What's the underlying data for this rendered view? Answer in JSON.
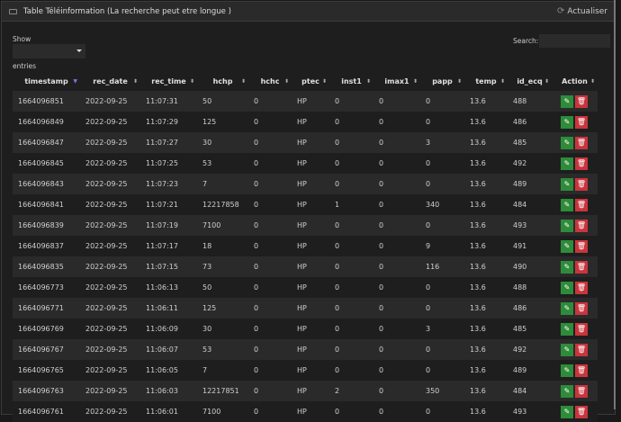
{
  "header": {
    "title": "Table Téléinformation (La recherche peut etre longue )",
    "refresh_label": "Actualiser"
  },
  "controls": {
    "show_label": "Show",
    "entries_label": "entries",
    "search_label": "Search:",
    "search_value": ""
  },
  "columns": [
    "timestamp",
    "rec_date",
    "rec_time",
    "hchp",
    "hchc",
    "ptec",
    "inst1",
    "imax1",
    "papp",
    "temp",
    "id_ecq",
    "Action"
  ],
  "sorted_column": "timestamp",
  "rows": [
    [
      "1664096851",
      "2022-09-25",
      "11:07:31",
      "50",
      "0",
      "HP",
      "0",
      "0",
      "0",
      "13.6",
      "488"
    ],
    [
      "1664096849",
      "2022-09-25",
      "11:07:29",
      "125",
      "0",
      "HP",
      "0",
      "0",
      "0",
      "13.6",
      "486"
    ],
    [
      "1664096847",
      "2022-09-25",
      "11:07:27",
      "30",
      "0",
      "HP",
      "0",
      "0",
      "3",
      "13.6",
      "485"
    ],
    [
      "1664096845",
      "2022-09-25",
      "11:07:25",
      "53",
      "0",
      "HP",
      "0",
      "0",
      "0",
      "13.6",
      "492"
    ],
    [
      "1664096843",
      "2022-09-25",
      "11:07:23",
      "7",
      "0",
      "HP",
      "0",
      "0",
      "0",
      "13.6",
      "489"
    ],
    [
      "1664096841",
      "2022-09-25",
      "11:07:21",
      "12217858",
      "0",
      "HP",
      "1",
      "0",
      "340",
      "13.6",
      "484"
    ],
    [
      "1664096839",
      "2022-09-25",
      "11:07:19",
      "7100",
      "0",
      "HP",
      "0",
      "0",
      "0",
      "13.6",
      "493"
    ],
    [
      "1664096837",
      "2022-09-25",
      "11:07:17",
      "18",
      "0",
      "HP",
      "0",
      "0",
      "9",
      "13.6",
      "491"
    ],
    [
      "1664096835",
      "2022-09-25",
      "11:07:15",
      "73",
      "0",
      "HP",
      "0",
      "0",
      "116",
      "13.6",
      "490"
    ],
    [
      "1664096773",
      "2022-09-25",
      "11:06:13",
      "50",
      "0",
      "HP",
      "0",
      "0",
      "0",
      "13.6",
      "488"
    ],
    [
      "1664096771",
      "2022-09-25",
      "11:06:11",
      "125",
      "0",
      "HP",
      "0",
      "0",
      "0",
      "13.6",
      "486"
    ],
    [
      "1664096769",
      "2022-09-25",
      "11:06:09",
      "30",
      "0",
      "HP",
      "0",
      "0",
      "3",
      "13.6",
      "485"
    ],
    [
      "1664096767",
      "2022-09-25",
      "11:06:07",
      "53",
      "0",
      "HP",
      "0",
      "0",
      "0",
      "13.6",
      "492"
    ],
    [
      "1664096765",
      "2022-09-25",
      "11:06:05",
      "7",
      "0",
      "HP",
      "0",
      "0",
      "0",
      "13.6",
      "489"
    ],
    [
      "1664096763",
      "2022-09-25",
      "11:06:03",
      "12217851",
      "0",
      "HP",
      "2",
      "0",
      "350",
      "13.6",
      "484"
    ],
    [
      "1664096761",
      "2022-09-25",
      "11:06:01",
      "7100",
      "0",
      "HP",
      "0",
      "0",
      "0",
      "13.6",
      "493"
    ]
  ],
  "icons": {
    "edit": "pencil-icon",
    "delete": "trash-icon",
    "refresh": "refresh-icon"
  },
  "colors": {
    "edit": "#2e8b3a",
    "delete": "#c9353d",
    "sort_active": "#7a7ae0"
  }
}
